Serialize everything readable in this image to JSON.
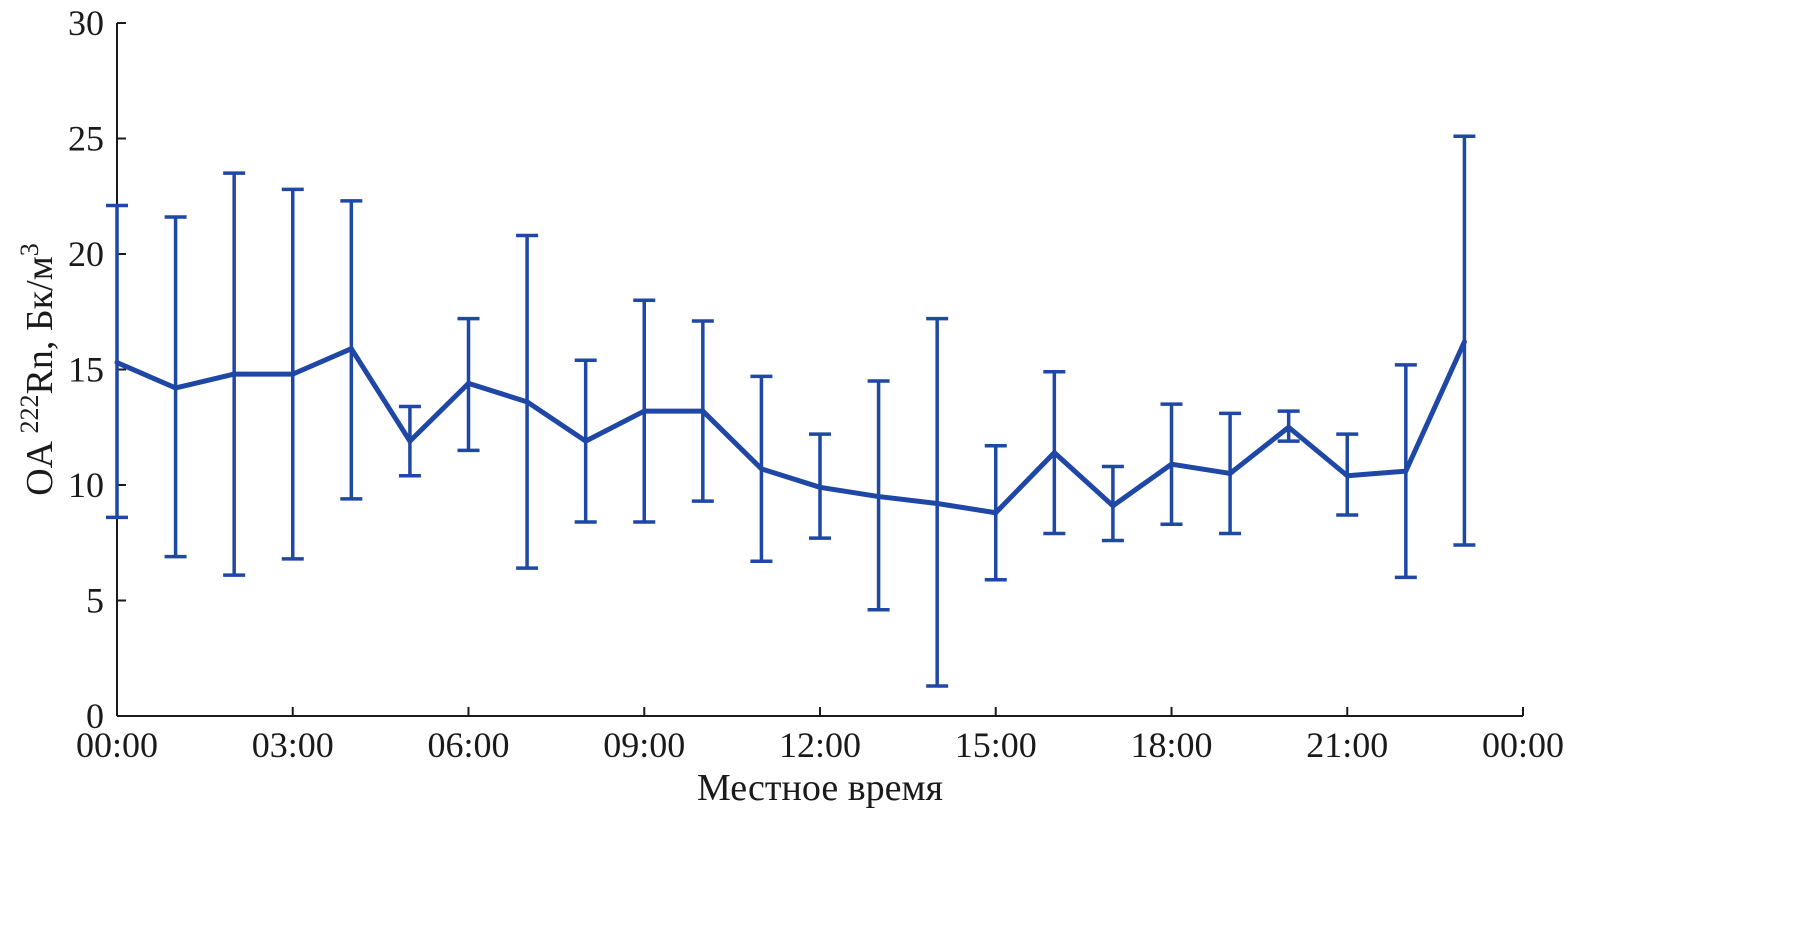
{
  "chart_data": {
    "type": "line",
    "xlabel": "Местное время",
    "ylabel": {
      "prefix": "OA ",
      "sup1": "222",
      "middle": "Rn, Бк/м",
      "sup2": "3"
    },
    "xlim": [
      0,
      24
    ],
    "ylim": [
      0,
      30
    ],
    "x_ticks": [
      {
        "value": 0,
        "label": "00:00"
      },
      {
        "value": 3,
        "label": "03:00"
      },
      {
        "value": 6,
        "label": "06:00"
      },
      {
        "value": 9,
        "label": "09:00"
      },
      {
        "value": 12,
        "label": "12:00"
      },
      {
        "value": 15,
        "label": "15:00"
      },
      {
        "value": 18,
        "label": "18:00"
      },
      {
        "value": 21,
        "label": "21:00"
      },
      {
        "value": 24,
        "label": "00:00"
      }
    ],
    "y_ticks": [
      {
        "value": 0,
        "label": "0"
      },
      {
        "value": 5,
        "label": "5"
      },
      {
        "value": 10,
        "label": "10"
      },
      {
        "value": 15,
        "label": "15"
      },
      {
        "value": 20,
        "label": "20"
      },
      {
        "value": 25,
        "label": "25"
      },
      {
        "value": 30,
        "label": "30"
      }
    ],
    "grid": false,
    "series": [
      {
        "color": "#1f47a6",
        "x": [
          0,
          1,
          2,
          3,
          4,
          5,
          6,
          7,
          8,
          9,
          10,
          11,
          12,
          13,
          14,
          15,
          16,
          17,
          18,
          19,
          20,
          21,
          22,
          23
        ],
        "values": [
          15.3,
          14.2,
          14.8,
          14.8,
          15.9,
          11.9,
          14.4,
          13.6,
          11.9,
          13.2,
          13.2,
          10.7,
          9.9,
          9.5,
          9.2,
          8.8,
          11.4,
          9.1,
          10.9,
          10.5,
          12.5,
          10.4,
          10.6,
          16.2
        ],
        "error_upper": [
          22.1,
          21.6,
          23.5,
          22.8,
          22.3,
          13.4,
          17.2,
          20.8,
          15.4,
          18.0,
          17.1,
          14.7,
          12.2,
          14.5,
          17.2,
          11.7,
          14.9,
          10.8,
          13.5,
          13.1,
          13.2,
          12.2,
          15.2,
          25.1
        ],
        "error_lower": [
          8.6,
          6.9,
          6.1,
          6.8,
          9.4,
          10.4,
          11.5,
          6.4,
          8.4,
          8.4,
          9.3,
          6.7,
          7.7,
          4.6,
          1.3,
          5.9,
          7.9,
          7.6,
          8.3,
          7.9,
          11.9,
          8.7,
          6.0,
          7.4
        ]
      }
    ]
  }
}
